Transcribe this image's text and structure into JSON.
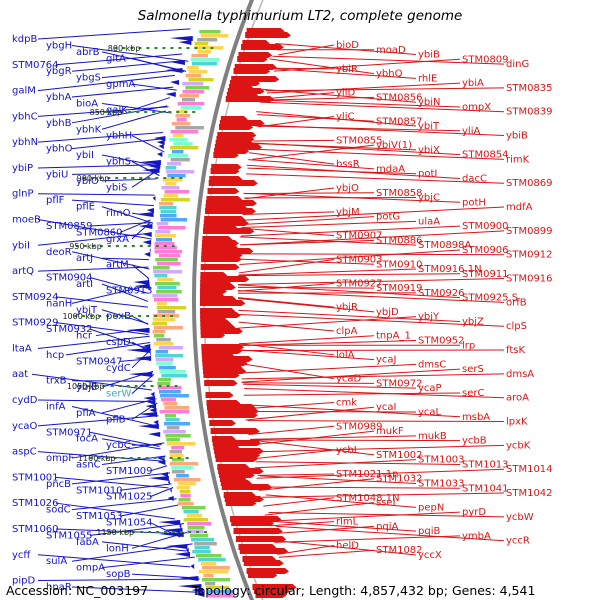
{
  "title": "Salmonella typhimurium LT2, complete genome",
  "footer": {
    "accession": "Accession: NC_003197",
    "topology": "Topology: circular; Length: 4,857,432 bp; Genes: 4,541"
  },
  "colors": {
    "left_strand": "#1414c8",
    "right_strand": "#dc1414",
    "rna_gene": "#3fa9c9",
    "backbone": "#808080",
    "tick_mark": "#2a8a2a"
  },
  "ticks": [
    "800 kbp",
    "850 kbp",
    "900 kbp",
    "950 kbp",
    "1000 kbp",
    "1050 kbp",
    "1100 kbp",
    "1150 kbp"
  ],
  "left_labels": [
    "kdpB",
    "ybgH",
    "abrB",
    "gltA",
    "STM0764",
    "ybgR",
    "ybgS",
    "gpmA",
    "galM",
    "ybhA",
    "bioA",
    "galK",
    "ybhC",
    "ybhB",
    "ybhK",
    "ybhH",
    "ybhN",
    "ybhO",
    "ybiI",
    "ybhS",
    "ybiP",
    "ybiU",
    "ybiO",
    "ybiS",
    "glnP",
    "pflF",
    "pflE",
    "rimO",
    "moeB",
    "STM0859",
    "STM0860",
    "grxA",
    "ybiI",
    "deoR",
    "artJ",
    "artM",
    "artQ",
    "STM0904",
    "artI",
    "STM0913",
    "STM0924",
    "nanH",
    "ybjT",
    "poxB",
    "STM0929",
    "STM0932",
    "hcr",
    "cspD",
    "ltaA",
    "hcp",
    "STM0947",
    "cydC",
    "aat",
    "trxB",
    "ybjE",
    "serW",
    "cydD",
    "infA",
    "pflA",
    "pflB",
    "ycaO",
    "STM0971",
    "focA",
    "ycbC",
    "aspC",
    "ompF",
    "asnC",
    "STM1009",
    "STM1001",
    "pncB",
    "STM1010",
    "STM1025",
    "STM1026",
    "sodC",
    "STM1053",
    "STM1054",
    "STM1060",
    "STM1055",
    "fabA",
    "lonH",
    "ycff",
    "sulA",
    "ompA",
    "sopB",
    "pipD",
    "hpaR"
  ],
  "right_labels": [
    "bioD",
    "moaD",
    "ybiB",
    "STM0809",
    "dinG",
    "ybiR",
    "ybhQ",
    "rhlE",
    "ybiA",
    "STM0835",
    "yliD",
    "STM0856",
    "ybiN",
    "ompX",
    "STM0839",
    "yliC",
    "STM0857",
    "ybiT",
    "yliA",
    "ybiB",
    "STM0855",
    "ybiV(1)",
    "ybiX",
    "STM0854",
    "rimK",
    "bssR",
    "mdaA",
    "potI",
    "dacC",
    "STM0869",
    "ybjO",
    "STM0858",
    "ybjC",
    "potH",
    "mdfA",
    "ybjM",
    "potG",
    "ulaA",
    "STM0900",
    "STM0899",
    "STM0907",
    "STM0886",
    "STM0898A",
    "STM0906",
    "STM0912",
    "STM0903",
    "STM0910",
    "STM0916.1N",
    "STM0911",
    "STM0916",
    "STM0927",
    "STM0919",
    "STM0926",
    "STM0925.S",
    "orfB",
    "ybjR",
    "ybjD",
    "ybjY",
    "ybjZ",
    "clpS",
    "clpA",
    "tnpA_1",
    "STM0952",
    "lrp",
    "ftsK",
    "lolA",
    "ycaJ",
    "dmsC",
    "serS",
    "dmsA",
    "ycaD",
    "STM0972",
    "ycaP",
    "serC",
    "aroA",
    "cmk",
    "ycaI",
    "ycaL",
    "msbA",
    "lpxK",
    "STM0989",
    "mukF",
    "mukB",
    "ycbB",
    "ycbK",
    "ycbL",
    "STM1002",
    "STM1003",
    "STM1013",
    "STM1014",
    "STM1021.1n",
    "STM1032",
    "STM1033",
    "STM1041",
    "STM1042",
    "STM1048.1N",
    "sseI",
    "pepN",
    "pyrD",
    "ycbW",
    "rlmL",
    "pqiA",
    "pqiB",
    "ymbA",
    "yccR",
    "helD",
    "STM1082",
    "yccX"
  ]
}
